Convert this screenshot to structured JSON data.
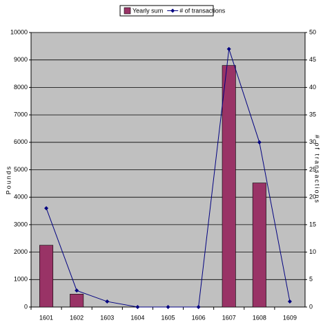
{
  "chart_data": {
    "type": "combo",
    "categories": [
      "1601",
      "1602",
      "1603",
      "1604",
      "1605",
      "1606",
      "1607",
      "1608",
      "1609"
    ],
    "series": [
      {
        "name": "Yearly sum",
        "type": "bar",
        "color": "#993366",
        "values": [
          2250,
          470,
          0,
          0,
          0,
          0,
          8800,
          4520,
          0
        ]
      },
      {
        "name": "# of transactions",
        "type": "line",
        "axis": "y2",
        "color": "#000080",
        "values": [
          18,
          3,
          1,
          0,
          0,
          0,
          47,
          30,
          1
        ]
      }
    ],
    "y_label": "Pounds",
    "y2_label": "# of transactions",
    "ylim": [
      0,
      10000
    ],
    "yticks": [
      0,
      1000,
      2000,
      3000,
      4000,
      5000,
      6000,
      7000,
      8000,
      9000,
      10000
    ],
    "y2lim": [
      0,
      50
    ],
    "y2ticks": [
      0,
      5,
      10,
      15,
      20,
      25,
      30,
      35,
      40,
      45,
      50
    ],
    "grid": true,
    "legend": "top"
  }
}
